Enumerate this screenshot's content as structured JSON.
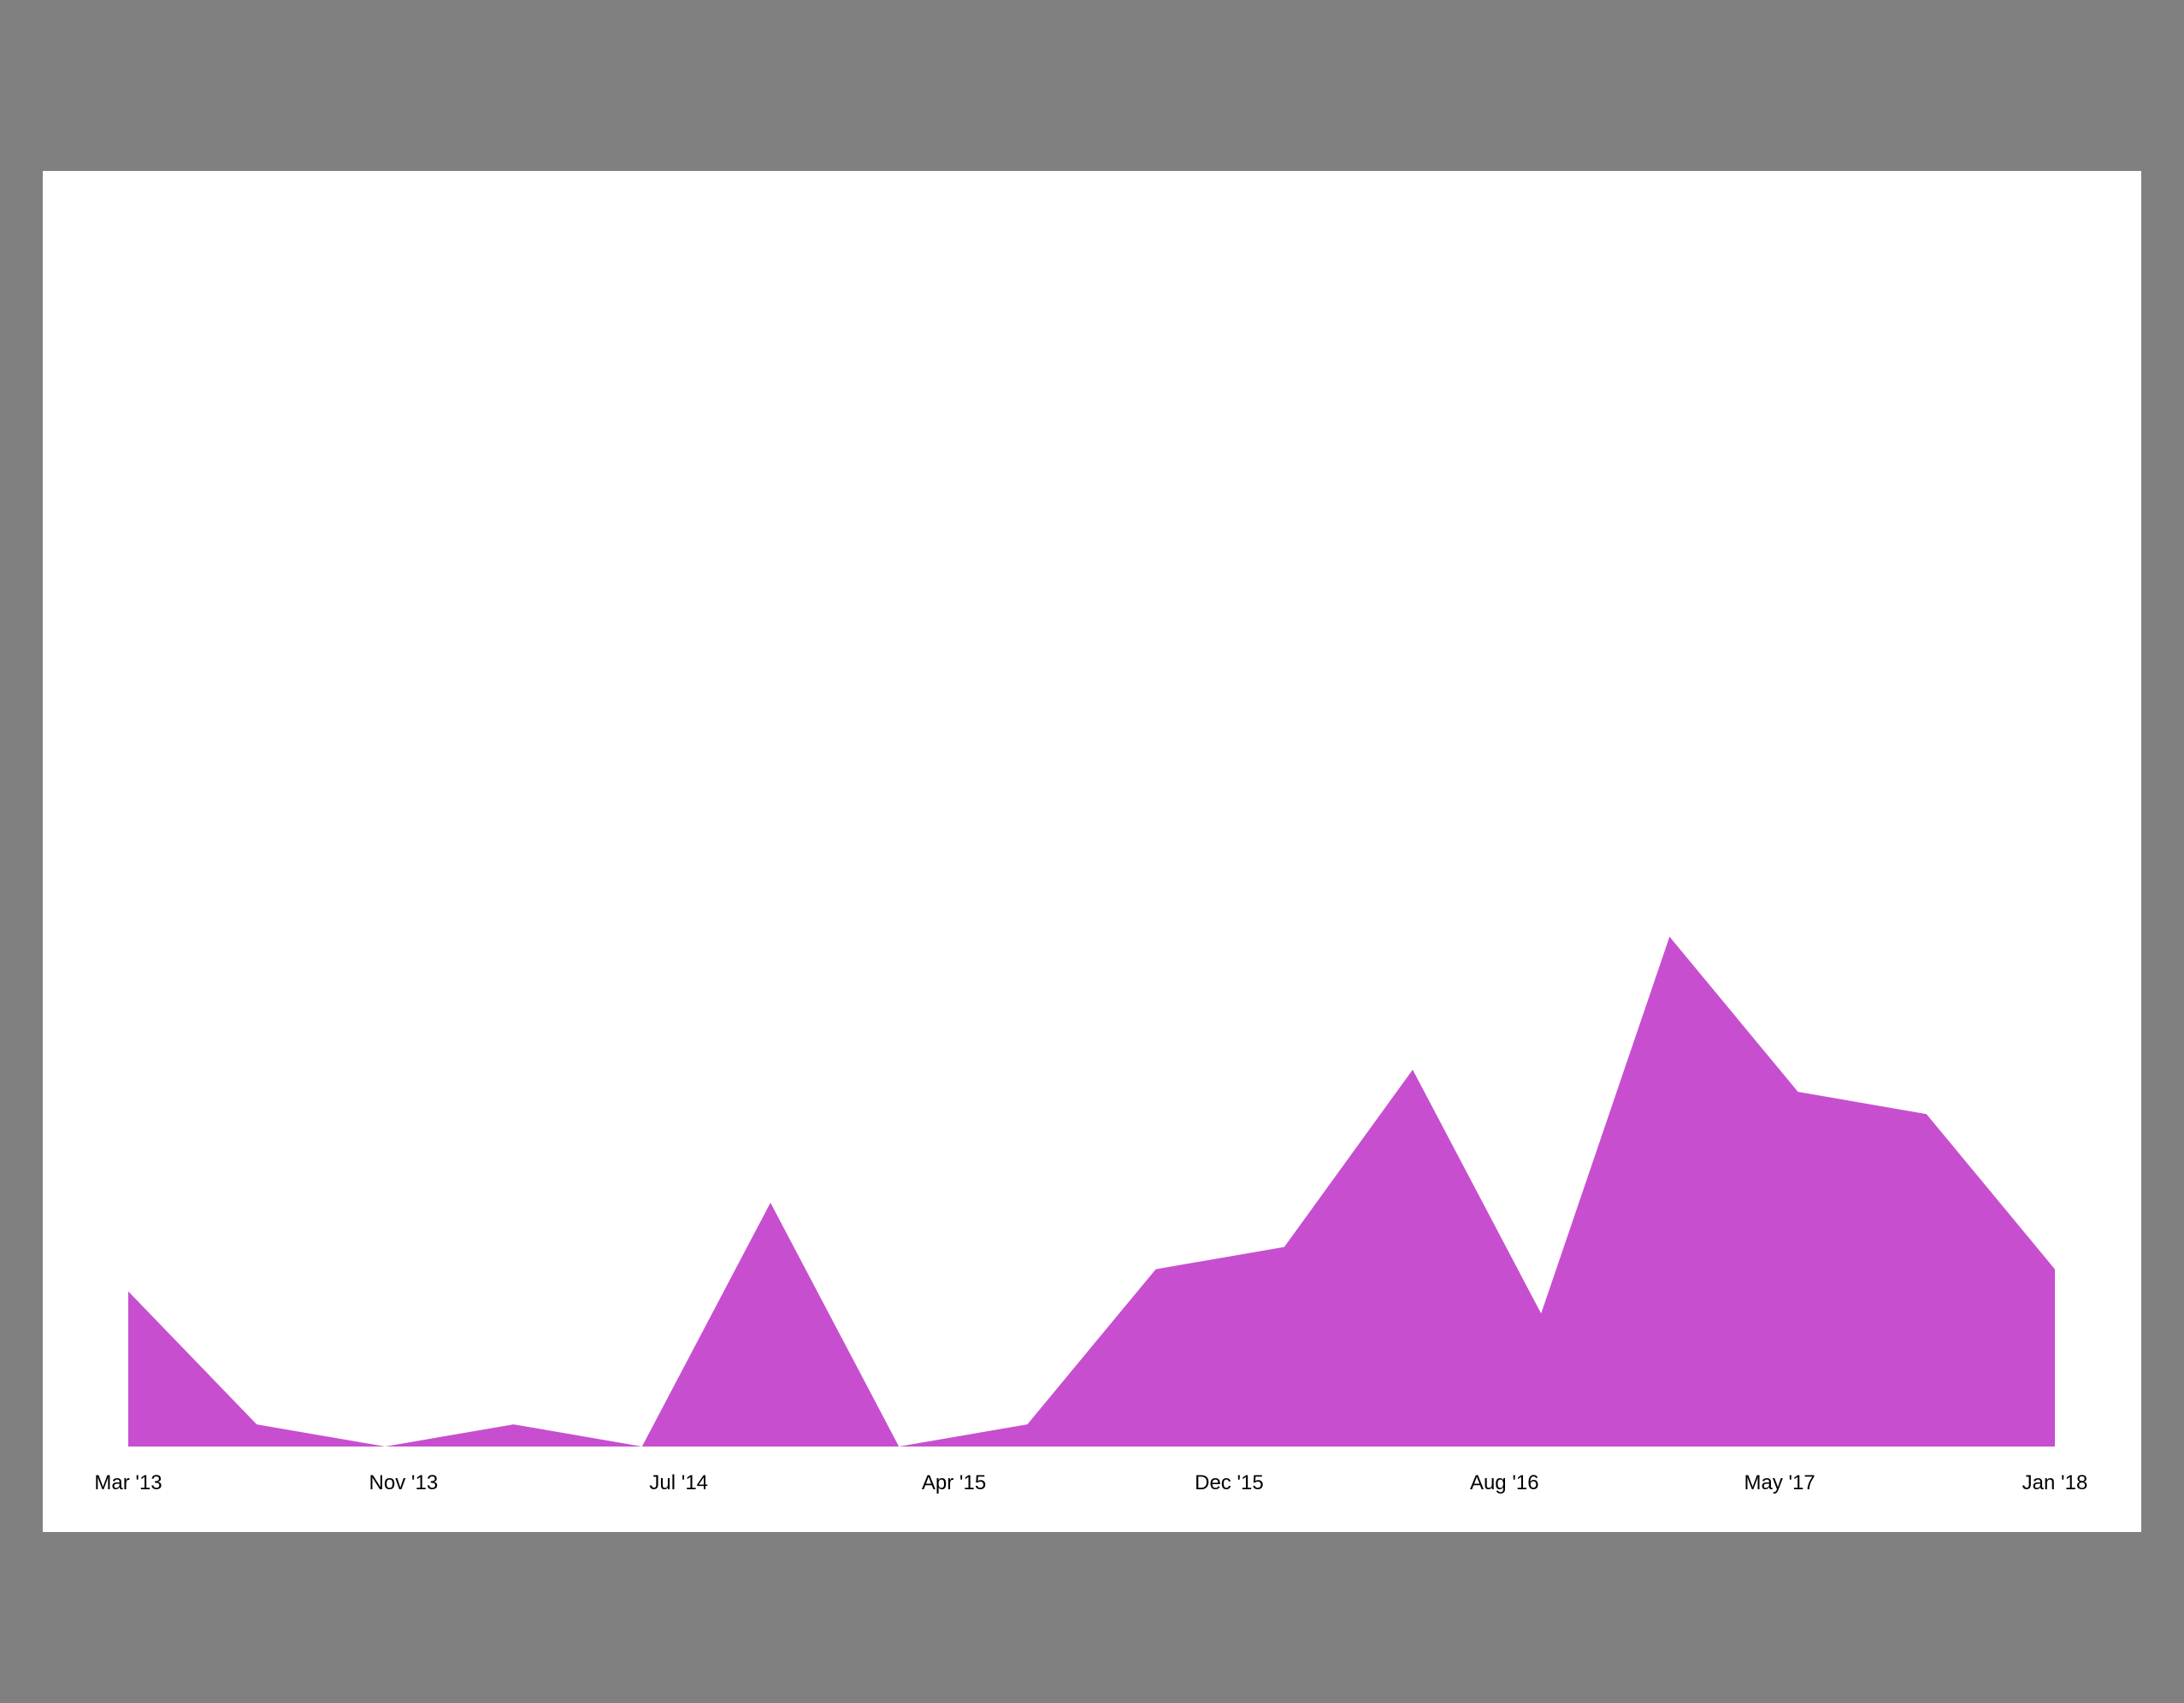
{
  "background_color": "#808080",
  "panel_color": "#ffffff",
  "chart_data": {
    "type": "area",
    "title": "",
    "xlabel": "",
    "ylabel": "",
    "color": "#c74fcf",
    "grid": false,
    "legend": false,
    "y_axis_visible": false,
    "x_tick_labels": [
      "Mar '13",
      "Nov '13",
      "Jul '14",
      "Apr '15",
      "Dec '15",
      "Aug '16",
      "May '17",
      "Jan '18"
    ],
    "x": [
      "2013-03",
      "2013-07",
      "2013-11",
      "2014-03",
      "2014-07",
      "2014-11",
      "2015-03",
      "2015-07",
      "2015-11",
      "2016-03",
      "2016-07",
      "2016-11",
      "2017-03",
      "2017-07",
      "2017-11",
      "2018-03"
    ],
    "values": [
      7,
      1,
      0,
      1,
      0,
      11,
      0,
      1,
      8,
      9,
      17,
      6,
      23,
      16,
      15,
      8
    ],
    "ylim": [
      0,
      56
    ]
  }
}
